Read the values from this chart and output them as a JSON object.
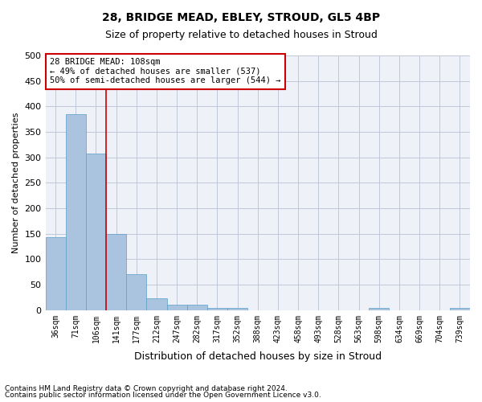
{
  "title1": "28, BRIDGE MEAD, EBLEY, STROUD, GL5 4BP",
  "title2": "Size of property relative to detached houses in Stroud",
  "xlabel": "Distribution of detached houses by size in Stroud",
  "ylabel": "Number of detached properties",
  "footer1": "Contains HM Land Registry data © Crown copyright and database right 2024.",
  "footer2": "Contains public sector information licensed under the Open Government Licence v3.0.",
  "annotation_line1": "28 BRIDGE MEAD: 108sqm",
  "annotation_line2": "← 49% of detached houses are smaller (537)",
  "annotation_line3": "50% of semi-detached houses are larger (544) →",
  "bar_values": [
    143,
    385,
    307,
    149,
    70,
    23,
    10,
    10,
    5,
    5,
    0,
    0,
    0,
    0,
    0,
    0,
    5,
    0,
    0,
    0,
    5
  ],
  "bar_labels": [
    "36sqm",
    "71sqm",
    "106sqm",
    "141sqm",
    "177sqm",
    "212sqm",
    "247sqm",
    "282sqm",
    "317sqm",
    "352sqm",
    "388sqm",
    "423sqm",
    "458sqm",
    "493sqm",
    "528sqm",
    "563sqm",
    "598sqm",
    "634sqm",
    "669sqm",
    "704sqm",
    "739sqm"
  ],
  "bar_color": "#aac4e0",
  "bar_edge_color": "#5a9fc8",
  "vline_x": 2,
  "vline_color": "#cc0000",
  "ylim": [
    0,
    500
  ],
  "yticks": [
    0,
    50,
    100,
    150,
    200,
    250,
    300,
    350,
    400,
    450,
    500
  ],
  "grid_color": "#c0c8d8",
  "annotation_box_color": "#cc0000",
  "bg_color": "#eef2f8"
}
